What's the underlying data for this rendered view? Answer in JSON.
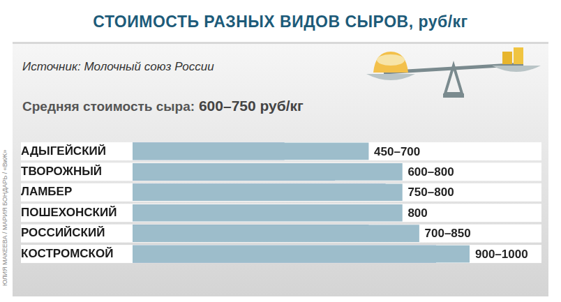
{
  "chart_data": {
    "type": "bar",
    "orientation": "horizontal",
    "title": "СТОИМОСТЬ РАЗНЫХ ВИДОВ СЫРОВ, руб/кг",
    "source": "Источник: Молочный союз России",
    "subtitle": "Средняя стоимость сыра: 600–750 руб/кг",
    "credit": "ЮЛИЯ МАКЕЕВА / МАРИЯ БОНДАРЬ / «ВиЖ»",
    "categories": [
      "АДЫГЕЙСКИЙ",
      "ТВОРОЖНЫЙ",
      "ЛАМБЕР",
      "ПОШЕХОНСКИЙ",
      "РОССИЙСКИЙ",
      "КОСТРОМСКОЙ"
    ],
    "series": [
      {
        "color": "#9dbdcb",
        "values": [
          700,
          800,
          800,
          800,
          850,
          1000
        ],
        "value_labels": [
          "450–700",
          "600–800",
          "750–800",
          "800",
          "700–850",
          "900–1000"
        ]
      },
      {
        "color": "#5683b3",
        "values": [
          450,
          600,
          750,
          null,
          700,
          900
        ]
      }
    ],
    "xlim": [
      0,
      1000
    ],
    "grid": false,
    "data_labels": true,
    "tick_labels": "y"
  }
}
